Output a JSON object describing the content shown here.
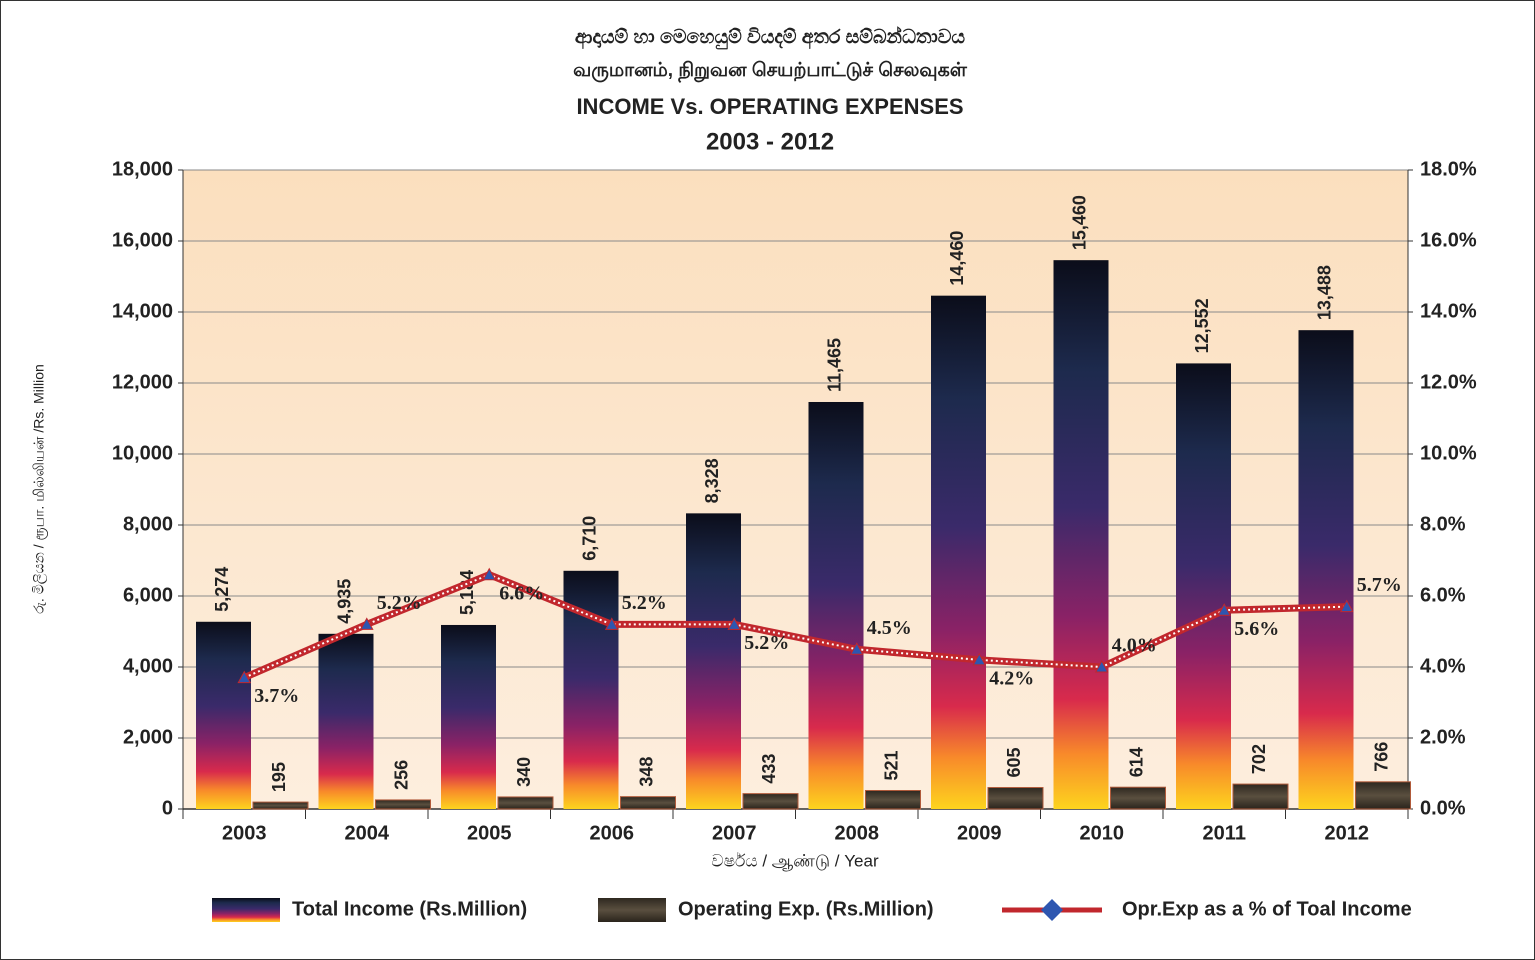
{
  "chart_data": {
    "type": "bar_line",
    "title_lines": [
      "ආදායම් හා මෙහෙයුම් වියදම් අතර සම්බන්ධතාවය",
      "வருமானம், நிறுவன செயற்பாட்டுச் செலவுகள்",
      "INCOME  Vs. OPERATING EXPENSES",
      "2003 - 2012"
    ],
    "y_label": "රු. මිලියන / ரூபா. மில்லியன் /Rs. Million",
    "x_label": "වර්ෂය  / ஆண்டு  / Year",
    "categories": [
      "2003",
      "2004",
      "2005",
      "2006",
      "2007",
      "2008",
      "2009",
      "2010",
      "2011",
      "2012"
    ],
    "series": [
      {
        "name": "Total Income (Rs.Million)",
        "type": "bar",
        "color": "#1a1f3d",
        "values": [
          5274,
          4935,
          5184,
          6710,
          8328,
          11465,
          14460,
          15460,
          12552,
          13488
        ],
        "value_labels": [
          "5,274",
          "4,935",
          "5,184",
          "6,710",
          "8,328",
          "11,465",
          "14,460",
          "15,460",
          "12,552",
          "13,488"
        ]
      },
      {
        "name": "Operating Exp. (Rs.Million)",
        "type": "bar",
        "color": "#4a4033",
        "values": [
          195,
          256,
          340,
          348,
          433,
          521,
          605,
          614,
          702,
          766
        ]
      },
      {
        "name": "Opr.Exp as a % of Toal Income",
        "type": "line",
        "axis": "y2",
        "color": "#c1272d",
        "values": [
          3.7,
          5.2,
          6.6,
          5.2,
          5.2,
          4.5,
          4.2,
          4.0,
          5.6,
          5.7
        ],
        "value_labels": [
          "3.7%",
          "5.2%",
          "6.6%",
          "5.2%",
          "5.2%",
          "4.5%",
          "4.2%",
          "4.0%",
          "5.6%",
          "5.7%"
        ]
      }
    ],
    "ylim": [
      0,
      18000
    ],
    "yticks": [
      0,
      {
        "value": 2000,
        "label": "2,000"
      },
      {
        "value": 4000,
        "label": "4,000"
      },
      {
        "value": 6000,
        "label": "6,000"
      },
      {
        "value": 8000,
        "label": "8,000"
      },
      {
        "value": 10000,
        "label": "10,000"
      },
      {
        "value": 12000,
        "label": "12,000"
      },
      {
        "value": 14000,
        "label": "14,000"
      },
      {
        "value": 16000,
        "label": "16,000"
      },
      {
        "value": 18000,
        "label": "18,000"
      }
    ],
    "y2lim": [
      0,
      18
    ],
    "y2ticks": [
      {
        "value": 0,
        "label": "0.0%"
      },
      {
        "value": 2,
        "label": "2.0%"
      },
      {
        "value": 4,
        "label": "4.0%"
      },
      {
        "value": 6,
        "label": "6.0%"
      },
      {
        "value": 8,
        "label": "8.0%"
      },
      {
        "value": 10,
        "label": "10.0%"
      },
      {
        "value": 12,
        "label": "12.0%"
      },
      {
        "value": 14,
        "label": "14.0%"
      },
      {
        "value": 16,
        "label": "16.0%"
      },
      {
        "value": 18,
        "label": "18.0%"
      }
    ],
    "grid": true,
    "legend": "bottom"
  }
}
